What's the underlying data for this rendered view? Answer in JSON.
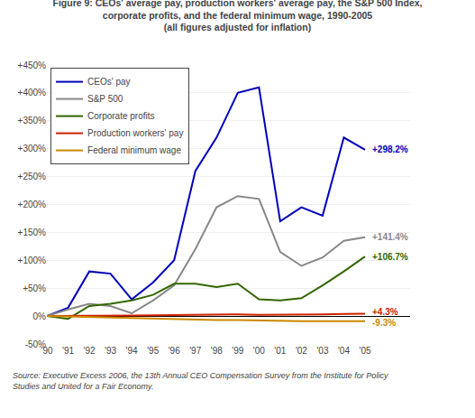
{
  "chart_data": {
    "type": "line",
    "title": "Figure 9: CEOs' average pay, production workers' average pay, the S&P 500 Index,\ncorporate profits, and the federal minimum wage, 1990-2005\n(all figures adjusted for inflation)",
    "source": "Source: Executive Excess 2006, the 13th Annual CEO Compensation Survey from the Institute for Policy\nStudies and United for a Fair Economy.",
    "categories": [
      "'90",
      "'91",
      "'92",
      "'93",
      "'94",
      "'95",
      "'96",
      "'97",
      "'98",
      "'99",
      "'00",
      "'01",
      "'02",
      "'03",
      "'04",
      "'05"
    ],
    "series": [
      {
        "name": "CEOs' pay",
        "color": "#0000BB",
        "values": [
          0,
          15,
          80,
          76,
          30,
          60,
          100,
          260,
          320,
          400,
          410,
          170,
          195,
          180,
          320,
          298.2
        ]
      },
      {
        "name": "S&P 500",
        "color": "#888888",
        "values": [
          0,
          12,
          22,
          18,
          5,
          28,
          55,
          120,
          195,
          215,
          210,
          115,
          90,
          105,
          135,
          141.4
        ]
      },
      {
        "name": "Corporate profits",
        "color": "#336600",
        "values": [
          0,
          -5,
          18,
          22,
          28,
          38,
          58,
          58,
          52,
          58,
          30,
          28,
          32,
          55,
          80,
          106.7
        ]
      },
      {
        "name": "Production workers' pay",
        "color": "#CC2200",
        "values": [
          0,
          0,
          1,
          0.5,
          1,
          1.5,
          2,
          2,
          2.5,
          3,
          2,
          2,
          2,
          3,
          4,
          4.3
        ]
      },
      {
        "name": "Federal minimum wage",
        "color": "#CC8800",
        "values": [
          0,
          -1,
          -2,
          -3,
          -4,
          -5,
          -6,
          -6,
          -7,
          -7,
          -8,
          -8.5,
          -9,
          -9.3,
          -9.3,
          -9.3
        ]
      }
    ],
    "annotations": [
      {
        "series": "CEOs' pay",
        "text": "+298.2%"
      },
      {
        "series": "S&P 500",
        "text": "+141.4%"
      },
      {
        "series": "Corporate profits",
        "text": "+106.7%"
      },
      {
        "series": "Production workers' pay",
        "text": "+4.3%"
      },
      {
        "series": "Federal minimum wage",
        "text": "-9.3%"
      }
    ],
    "ylim": [
      -50,
      450
    ],
    "yticks": [
      {
        "value": -50,
        "label": "-50%"
      },
      {
        "value": 0,
        "label": "0%"
      },
      {
        "value": 50,
        "label": "+50%"
      },
      {
        "value": 100,
        "label": "+100%"
      },
      {
        "value": 150,
        "label": "+150%"
      },
      {
        "value": 200,
        "label": "+200%"
      },
      {
        "value": 250,
        "label": "+250%"
      },
      {
        "value": 300,
        "label": "+300%"
      },
      {
        "value": 350,
        "label": "+350%"
      },
      {
        "value": 400,
        "label": "+400%"
      },
      {
        "value": 450,
        "label": "+450%"
      }
    ],
    "grid": true,
    "legend": "upper left"
  }
}
